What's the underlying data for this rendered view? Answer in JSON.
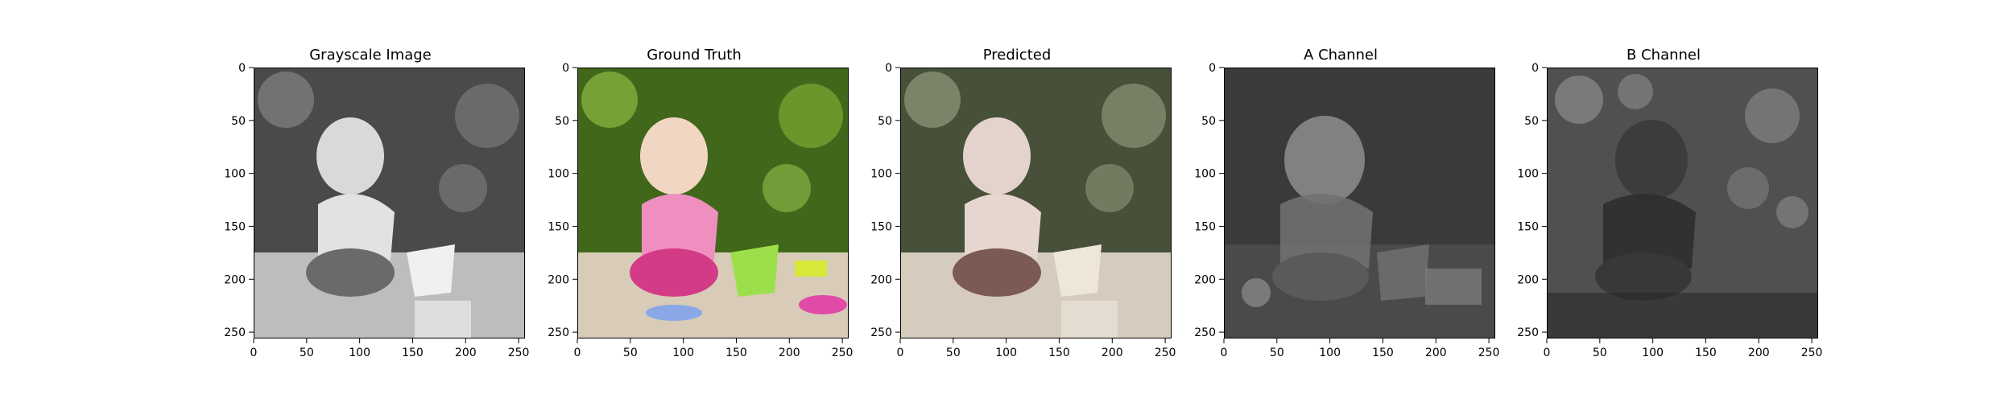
{
  "chart_data": [
    {
      "type": "image",
      "title": "Grayscale Image",
      "xlim": [
        0,
        256
      ],
      "ylim": [
        256,
        0
      ],
      "xticks": [
        0,
        50,
        100,
        150,
        200,
        250
      ],
      "yticks": [
        0,
        50,
        100,
        150,
        200,
        250
      ],
      "colormap": "grayscale"
    },
    {
      "type": "image",
      "title": "Ground Truth",
      "xlim": [
        0,
        256
      ],
      "ylim": [
        256,
        0
      ],
      "xticks": [
        0,
        50,
        100,
        150,
        200,
        250
      ],
      "yticks": [
        0,
        50,
        100,
        150,
        200,
        250
      ],
      "colormap": "color"
    },
    {
      "type": "image",
      "title": "Predicted",
      "xlim": [
        0,
        256
      ],
      "ylim": [
        256,
        0
      ],
      "xticks": [
        0,
        50,
        100,
        150,
        200,
        250
      ],
      "yticks": [
        0,
        50,
        100,
        150,
        200,
        250
      ],
      "colormap": "desaturated-color"
    },
    {
      "type": "image",
      "title": "A Channel",
      "xlim": [
        0,
        256
      ],
      "ylim": [
        256,
        0
      ],
      "xticks": [
        0,
        50,
        100,
        150,
        200,
        250
      ],
      "yticks": [
        0,
        50,
        100,
        150,
        200,
        250
      ],
      "colormap": "grayscale"
    },
    {
      "type": "image",
      "title": "B Channel",
      "xlim": [
        0,
        256
      ],
      "ylim": [
        256,
        0
      ],
      "xticks": [
        0,
        50,
        100,
        150,
        200,
        250
      ],
      "yticks": [
        0,
        50,
        100,
        150,
        200,
        250
      ],
      "colormap": "grayscale"
    }
  ],
  "colors": {
    "gray_bg": "#6f6f6f",
    "gray_foliage": "#3a3a3a",
    "gray_figure": "#d9d9d9",
    "gt_foliage": "#4f7d22",
    "gt_shirt": "#ef8fc0",
    "gt_skirt": "#d43b86",
    "gt_bucket": "#9be04a",
    "pred_foliage": "#5e6a4c",
    "pred_figure": "#e3d3cc",
    "a_bg": "#3a3a3a",
    "a_figure": "#9a9a9a",
    "b_bg": "#505050",
    "b_figure": "#2e2e2e"
  }
}
